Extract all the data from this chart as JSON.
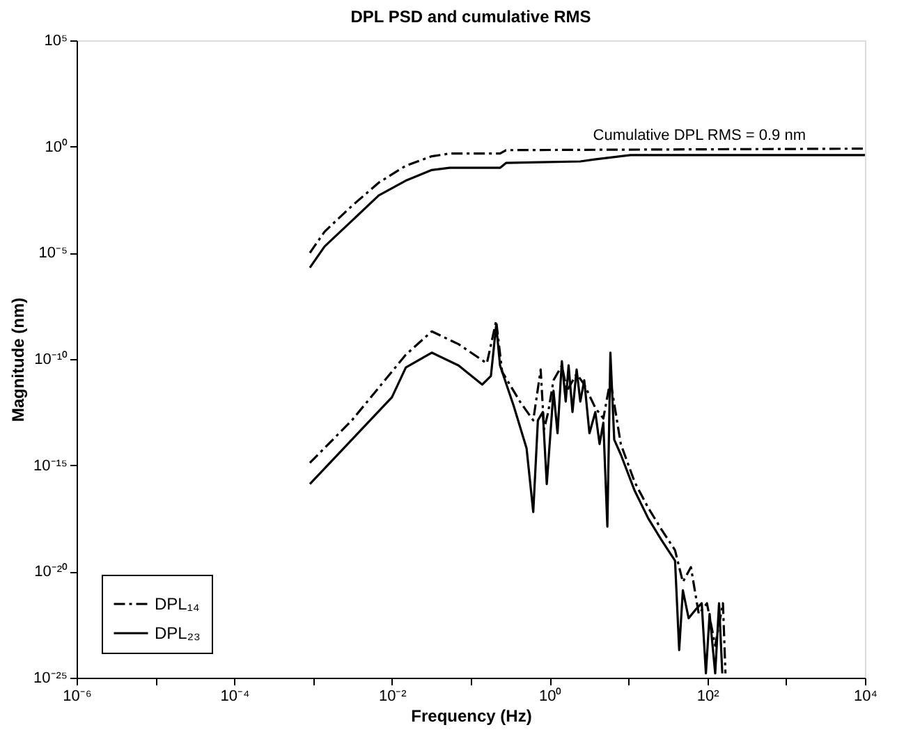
{
  "chart_data": {
    "type": "line",
    "title": "DPL PSD and cumulative RMS",
    "xlabel": "Frequency (Hz)",
    "ylabel": "Magnitude (nm)",
    "log": "xy",
    "grid": false,
    "legend": "bottom left",
    "marker": "none",
    "xlim": [
      1e-06,
      10000.0
    ],
    "ylim": [
      1e-25,
      100000.0
    ],
    "xticks": [
      {
        "value": 1e-06,
        "label": "10⁻⁶"
      },
      {
        "value": 1e-05,
        "label": null
      },
      {
        "value": 0.0001,
        "label": "10⁻⁴"
      },
      {
        "value": 0.001,
        "label": null
      },
      {
        "value": 0.01,
        "label": "10⁻²"
      },
      {
        "value": 0.1,
        "label": null
      },
      {
        "value": 1,
        "label": "10⁰"
      },
      {
        "value": 10,
        "label": null
      },
      {
        "value": 100,
        "label": "10²"
      },
      {
        "value": 1000,
        "label": null
      },
      {
        "value": 10000,
        "label": "10⁴"
      }
    ],
    "yticks": [
      {
        "value": 1e-25,
        "label": "10⁻²⁵"
      },
      {
        "value": 1e-20,
        "label": "10⁻²⁰"
      },
      {
        "value": 1e-15,
        "label": "10⁻¹⁵"
      },
      {
        "value": 1e-10,
        "label": "10⁻¹⁰"
      },
      {
        "value": 1e-05,
        "label": "10⁻⁵"
      },
      {
        "value": 1,
        "label": "10⁰"
      },
      {
        "value": 100000,
        "label": "10⁵"
      }
    ],
    "annotations": [
      "Cumulative DPL RMS = 0.9 nm"
    ],
    "series": [
      {
        "name": "DPL₁₄",
        "color": "#000000",
        "line_style": "dashed",
        "x": [
          0.00091,
          0.0031,
          0.015,
          0.032,
          0.07,
          0.16,
          0.21,
          0.25,
          0.42,
          0.62,
          0.77,
          0.85,
          0.96,
          1.12,
          1.43,
          1.66,
          2.2,
          2.75,
          3.8,
          4.8,
          5.9,
          8,
          12,
          17.8,
          26,
          39,
          49,
          62,
          78,
          99,
          126,
          158,
          170
        ],
        "values": [
          1.3e-15,
          1.3e-13,
          1.6e-10,
          2e-09,
          5e-10,
          6.3e-11,
          6.3e-09,
          2.5e-11,
          1e-12,
          1.3e-13,
          3.2e-11,
          5e-14,
          3.2e-13,
          1e-11,
          5e-11,
          3.2e-12,
          2e-11,
          6.3e-12,
          5e-13,
          1.6e-13,
          1e-11,
          1e-14,
          1.6e-16,
          1e-17,
          1e-18,
          1e-19,
          3.2e-21,
          1.6e-20,
          1e-22,
          3.2e-22,
          3.2e-24,
          3.2e-22,
          1.6e-25
        ]
      },
      {
        "name": "DPL₂₃",
        "color": "#000000",
        "line_style": "solid",
        "x": [
          0.00091,
          0.0031,
          0.01,
          0.015,
          0.032,
          0.07,
          0.14,
          0.18,
          0.21,
          0.235,
          0.35,
          0.51,
          0.62,
          0.71,
          0.82,
          0.92,
          1.12,
          1.26,
          1.43,
          1.6,
          1.74,
          1.95,
          2.2,
          2.45,
          2.75,
          3.2,
          3.8,
          4.3,
          4.8,
          5.4,
          5.9,
          6.6,
          8,
          12,
          17.8,
          26,
          39,
          44,
          49,
          58,
          71,
          85,
          96,
          107,
          126,
          141,
          155
        ],
        "values": [
          1.3e-16,
          1.6e-14,
          1.6e-12,
          4e-11,
          2e-10,
          5e-11,
          6.3e-12,
          1.6e-11,
          4e-09,
          5e-11,
          6.3e-13,
          6.3e-15,
          6.3e-18,
          1.3e-13,
          3.2e-13,
          1.3e-16,
          3.2e-12,
          3.2e-14,
          7.9e-11,
          1e-12,
          5e-11,
          3.2e-13,
          3.2e-11,
          1e-12,
          1e-11,
          3.2e-14,
          3.2e-13,
          1e-14,
          1e-13,
          1.3e-18,
          2e-10,
          1.6e-14,
          3.2e-15,
          6.3e-17,
          3.2e-18,
          3.2e-19,
          3.2e-20,
          2e-24,
          1.3e-21,
          6.3e-23,
          1.6e-22,
          3.2e-22,
          1.6e-25,
          1e-22,
          1.6e-25,
          3.2e-22,
          1.6e-25
        ]
      },
      {
        "color": "#000000",
        "line_style": "dashed",
        "x": [
          0.00091,
          0.0014,
          0.0031,
          0.0068,
          0.015,
          0.032,
          0.054,
          0.235,
          0.28,
          10000
        ],
        "values": [
          1e-05,
          0.0001,
          0.0016,
          0.02,
          0.126,
          0.35,
          0.47,
          0.47,
          0.68,
          0.8
        ]
      },
      {
        "color": "#000000",
        "line_style": "solid",
        "x": [
          0.00091,
          0.0014,
          0.0031,
          0.0068,
          0.015,
          0.032,
          0.054,
          0.235,
          0.28,
          2.45,
          3.7,
          10.6,
          10000
        ],
        "values": [
          2e-06,
          2e-05,
          0.00032,
          0.005,
          0.025,
          0.079,
          0.1,
          0.1,
          0.17,
          0.2,
          0.25,
          0.4,
          0.4
        ]
      }
    ]
  }
}
